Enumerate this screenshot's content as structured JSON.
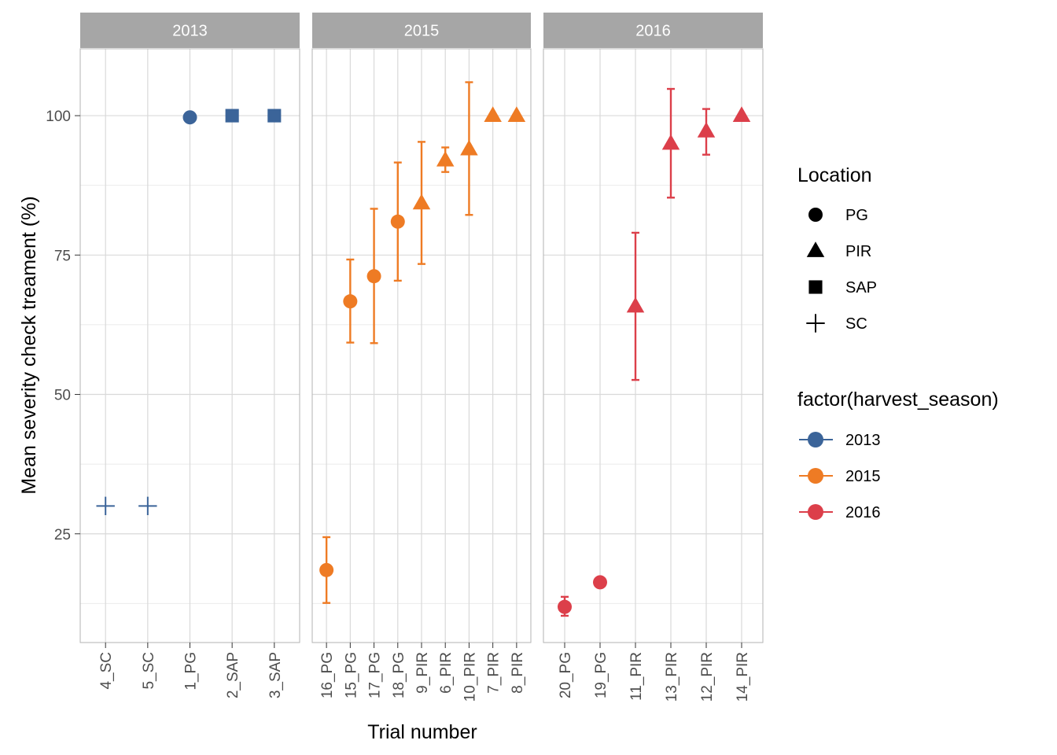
{
  "chart_data": {
    "type": "scatter",
    "xlabel": "Trial number",
    "ylabel": "Mean severity check treament (%)",
    "ylim": [
      5.5,
      112
    ],
    "y_ticks": [
      25,
      50,
      75,
      100
    ],
    "grid": true,
    "panels": [
      {
        "title": "2013",
        "color": "#3B6499",
        "categories": [
          "4_SC",
          "5_SC",
          "1_PG",
          "2_SAP",
          "3_SAP"
        ],
        "points": [
          {
            "trial": "4_SC",
            "location": "SC",
            "y": 30
          },
          {
            "trial": "5_SC",
            "location": "SC",
            "y": 30
          },
          {
            "trial": "1_PG",
            "location": "PG",
            "y": 99.7
          },
          {
            "trial": "2_SAP",
            "location": "SAP",
            "y": 100
          },
          {
            "trial": "3_SAP",
            "location": "SAP",
            "y": 100
          }
        ]
      },
      {
        "title": "2015",
        "color": "#EE7B24",
        "categories": [
          "16_PG",
          "15_PG",
          "17_PG",
          "18_PG",
          "9_PIR",
          "6_PIR",
          "10_PIR",
          "7_PIR",
          "8_PIR"
        ],
        "points": [
          {
            "trial": "16_PG",
            "location": "PG",
            "y": 18.5,
            "ymin": 12.6,
            "ymax": 24.4
          },
          {
            "trial": "15_PG",
            "location": "PG",
            "y": 66.7,
            "ymin": 59.3,
            "ymax": 74.2
          },
          {
            "trial": "17_PG",
            "location": "PG",
            "y": 71.2,
            "ymin": 59.2,
            "ymax": 83.3
          },
          {
            "trial": "18_PG",
            "location": "PG",
            "y": 81,
            "ymin": 70.4,
            "ymax": 91.6
          },
          {
            "trial": "9_PIR",
            "location": "PIR",
            "y": 84.3,
            "ymin": 73.4,
            "ymax": 95.3
          },
          {
            "trial": "6_PIR",
            "location": "PIR",
            "y": 92,
            "ymin": 89.9,
            "ymax": 94.3
          },
          {
            "trial": "10_PIR",
            "location": "PIR",
            "y": 94,
            "ymin": 82.2,
            "ymax": 106
          },
          {
            "trial": "7_PIR",
            "location": "PIR",
            "y": 100
          },
          {
            "trial": "8_PIR",
            "location": "PIR",
            "y": 100
          }
        ]
      },
      {
        "title": "2016",
        "color": "#DC3F4A",
        "categories": [
          "20_PG",
          "19_PG",
          "11_PIR",
          "13_PIR",
          "12_PIR",
          "14_PIR"
        ],
        "points": [
          {
            "trial": "20_PG",
            "location": "PG",
            "y": 11.9,
            "ymin": 10.3,
            "ymax": 13.7
          },
          {
            "trial": "19_PG",
            "location": "PG",
            "y": 16.3
          },
          {
            "trial": "11_PIR",
            "location": "PIR",
            "y": 65.8,
            "ymin": 52.6,
            "ymax": 79
          },
          {
            "trial": "13_PIR",
            "location": "PIR",
            "y": 95,
            "ymin": 85.3,
            "ymax": 104.8
          },
          {
            "trial": "12_PIR",
            "location": "PIR",
            "y": 97.2,
            "ymin": 93,
            "ymax": 101.2
          },
          {
            "trial": "14_PIR",
            "location": "PIR",
            "y": 100
          }
        ]
      }
    ],
    "legends": [
      {
        "title": "Location",
        "items": [
          {
            "label": "PG",
            "shape": "circle"
          },
          {
            "label": "PIR",
            "shape": "triangle"
          },
          {
            "label": "SAP",
            "shape": "square"
          },
          {
            "label": "SC",
            "shape": "plus"
          }
        ]
      },
      {
        "title": "factor(harvest_season)",
        "items": [
          {
            "label": "2013",
            "color": "#3B6499"
          },
          {
            "label": "2015",
            "color": "#EE7B24"
          },
          {
            "label": "2016",
            "color": "#DC3F4A"
          }
        ]
      }
    ]
  }
}
